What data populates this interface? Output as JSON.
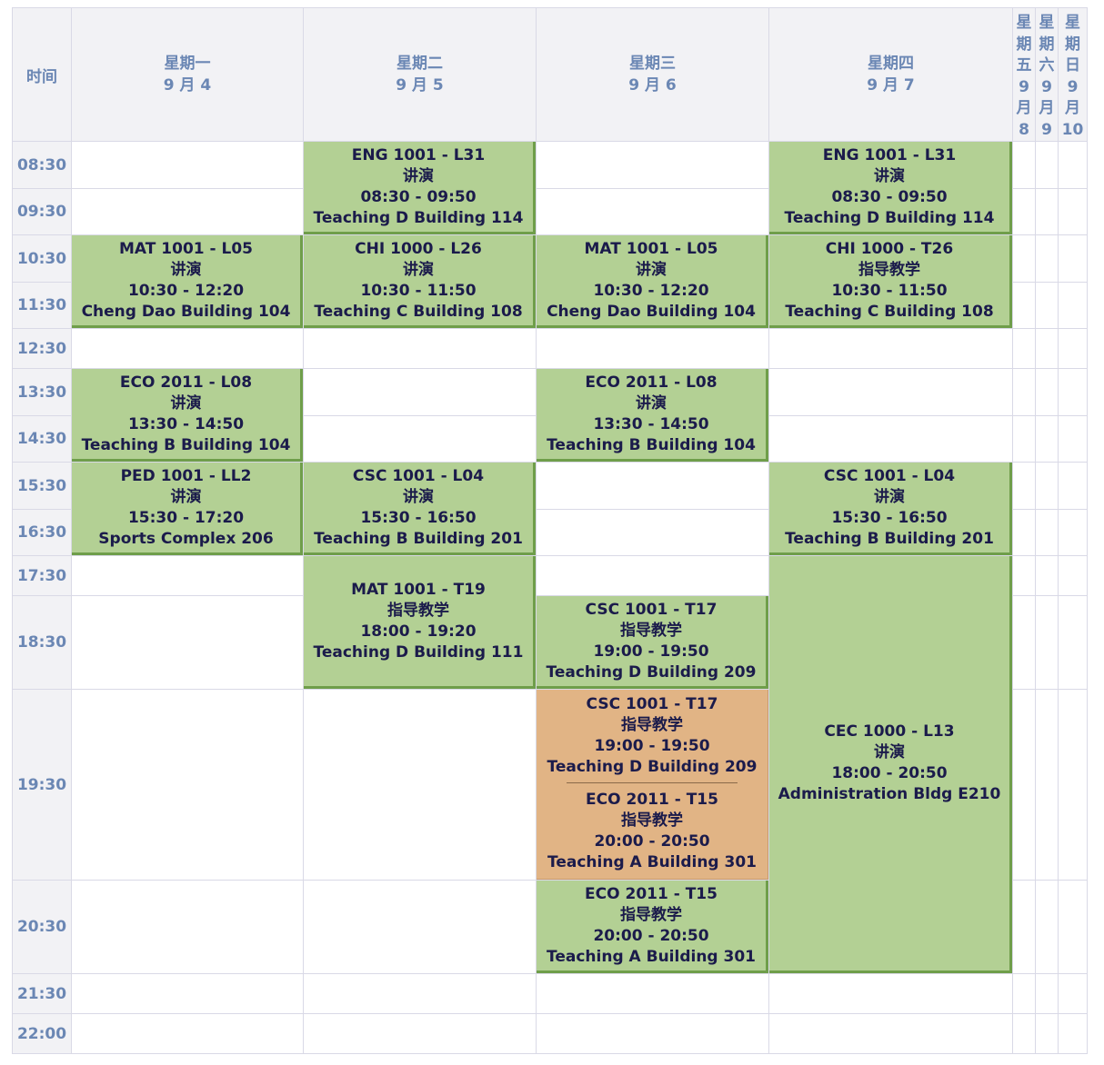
{
  "header": {
    "time_label": "时间",
    "days": [
      {
        "name": "星期一",
        "date": "9 月 4"
      },
      {
        "name": "星期二",
        "date": "9 月 5"
      },
      {
        "name": "星期三",
        "date": "9 月 6"
      },
      {
        "name": "星期四",
        "date": "9 月 7"
      }
    ],
    "narrow_days": [
      {
        "chars": [
          "星",
          "期",
          "五",
          "9",
          "月",
          "8"
        ]
      },
      {
        "chars": [
          "星",
          "期",
          "六",
          "9",
          "月",
          "9"
        ]
      },
      {
        "chars": [
          "星",
          "期",
          "日",
          "9",
          "月",
          "10"
        ]
      }
    ]
  },
  "times": [
    "08:30",
    "09:30",
    "10:30",
    "11:30",
    "12:30",
    "13:30",
    "14:30",
    "15:30",
    "16:30",
    "17:30",
    "18:30",
    "19:30",
    "20:30",
    "21:30",
    "22:00"
  ],
  "events": [
    {
      "lines": [
        "ENG 1001 - L31",
        "讲演",
        "08:30 - 09:50",
        "Teaching D Building 114"
      ]
    },
    {
      "lines": [
        "ENG 1001 - L31",
        "讲演",
        "08:30 - 09:50",
        "Teaching D Building 114"
      ]
    },
    {
      "lines": [
        "MAT 1001 - L05",
        "讲演",
        "10:30 - 12:20",
        "Cheng Dao Building 104"
      ]
    },
    {
      "lines": [
        "CHI 1000 - L26",
        "讲演",
        "10:30 - 11:50",
        "Teaching C Building 108"
      ]
    },
    {
      "lines": [
        "MAT 1001 - L05",
        "讲演",
        "10:30 - 12:20",
        "Cheng Dao Building 104"
      ]
    },
    {
      "lines": [
        "CHI 1000 - T26",
        "指导教学",
        "10:30 - 11:50",
        "Teaching C Building 108"
      ]
    },
    {
      "lines": [
        "ECO 2011 - L08",
        "讲演",
        "13:30 - 14:50",
        "Teaching B Building 104"
      ]
    },
    {
      "lines": [
        "ECO 2011 - L08",
        "讲演",
        "13:30 - 14:50",
        "Teaching B Building 104"
      ]
    },
    {
      "lines": [
        "PED 1001 - LL2",
        "讲演",
        "15:30 - 17:20",
        "Sports Complex 206"
      ]
    },
    {
      "lines": [
        "CSC 1001 - L04",
        "讲演",
        "15:30 - 16:50",
        "Teaching B Building 201"
      ]
    },
    {
      "lines": [
        "CSC 1001 - L04",
        "讲演",
        "15:30 - 16:50",
        "Teaching B Building 201"
      ]
    },
    {
      "lines": [
        "MAT 1001 - T19",
        "指导教学",
        "18:00 - 19:20",
        "Teaching D Building 111"
      ]
    },
    {
      "lines": [
        "CSC 1001 - T17",
        "指导教学",
        "19:00 - 19:50",
        "Teaching D Building 209"
      ]
    },
    {
      "lines": [
        "CEC 1000 - L13",
        "讲演",
        "18:00 - 20:50",
        "Administration Bldg E210"
      ]
    },
    {
      "lines": [
        "ECO 2011 - T15",
        "指导教学",
        "20:00 - 20:50",
        "Teaching A Building 301"
      ]
    }
  ],
  "conflict": {
    "colors": {
      "conflict": "#e1b485",
      "event": "#b3d094"
    },
    "a": [
      "CSC 1001 - T17",
      "指导教学",
      "19:00 - 19:50",
      "Teaching D Building 209"
    ],
    "b": [
      "ECO 2011 - T15",
      "指导教学",
      "20:00 - 20:50",
      "Teaching A Building 301"
    ]
  }
}
